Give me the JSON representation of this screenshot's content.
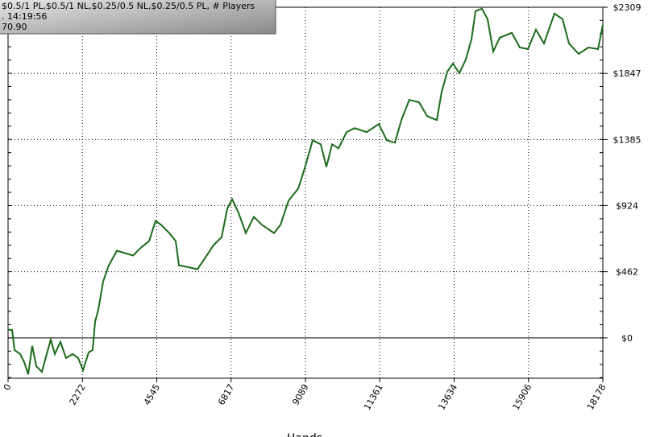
{
  "chart_data": {
    "type": "line",
    "x_label": "Hands",
    "tooltip_lines": [
      "$0.5/1 PL,$0.5/1 NL,$0.25/0.5 NL,$0.25/0.5 PL, # Players",
      ". 14:19:56",
      "70.90"
    ],
    "xlim": [
      0,
      18178
    ],
    "xticks": [
      0,
      2272,
      4545,
      6817,
      9089,
      11361,
      13634,
      15906,
      18178
    ],
    "ylim": [
      -282,
      2309
    ],
    "yticks": [
      {
        "value": 0,
        "label": "$0"
      },
      {
        "value": 462,
        "label": "$462"
      },
      {
        "value": 924,
        "label": "$924"
      },
      {
        "value": 1385,
        "label": "$1385"
      },
      {
        "value": 1847,
        "label": "$1847"
      },
      {
        "value": 2309,
        "label": "$2309"
      }
    ],
    "grid": true,
    "series": [
      {
        "color": "#1a6b1a",
        "x": [
          0,
          123,
          197,
          370,
          493,
          616,
          739,
          862,
          1035,
          1182,
          1305,
          1428,
          1601,
          1773,
          1970,
          2143,
          2291,
          2463,
          2586,
          2660,
          2759,
          2906,
          3079,
          3325,
          3571,
          3818,
          4064,
          4310,
          4507,
          4680,
          4926,
          5123,
          5222,
          5468,
          5788,
          6034,
          6280,
          6527,
          6699,
          6847,
          7044,
          7266,
          7512,
          7758,
          8128,
          8325,
          8571,
          8867,
          9064,
          9310,
          9556,
          9729,
          9901,
          10098,
          10344,
          10590,
          10960,
          11330,
          11576,
          11822,
          12019,
          12265,
          12561,
          12807,
          13103,
          13251,
          13423,
          13596,
          13793,
          13990,
          14163,
          14286,
          14483,
          14655,
          14828,
          15025,
          15395,
          15641,
          15887,
          16134,
          16380,
          16700,
          16946,
          17143,
          17438,
          17734,
          18030,
          18178
        ],
        "values": [
          56,
          56,
          -85,
          -113,
          -169,
          -254,
          -56,
          -197,
          -237,
          -113,
          -11,
          -113,
          -28,
          -141,
          -113,
          -141,
          -225,
          -101,
          -85,
          113,
          197,
          394,
          507,
          608,
          592,
          575,
          631,
          676,
          817,
          789,
          732,
          676,
          507,
          496,
          479,
          563,
          648,
          704,
          901,
          969,
          873,
          732,
          845,
          789,
          732,
          789,
          958,
          1042,
          1183,
          1380,
          1352,
          1194,
          1352,
          1324,
          1437,
          1465,
          1437,
          1493,
          1380,
          1363,
          1521,
          1662,
          1645,
          1549,
          1521,
          1718,
          1859,
          1916,
          1848,
          1944,
          2085,
          2282,
          2299,
          2226,
          2000,
          2096,
          2130,
          2028,
          2017,
          2152,
          2056,
          2265,
          2226,
          2056,
          1983,
          2028,
          2017,
          2186
        ]
      }
    ]
  }
}
